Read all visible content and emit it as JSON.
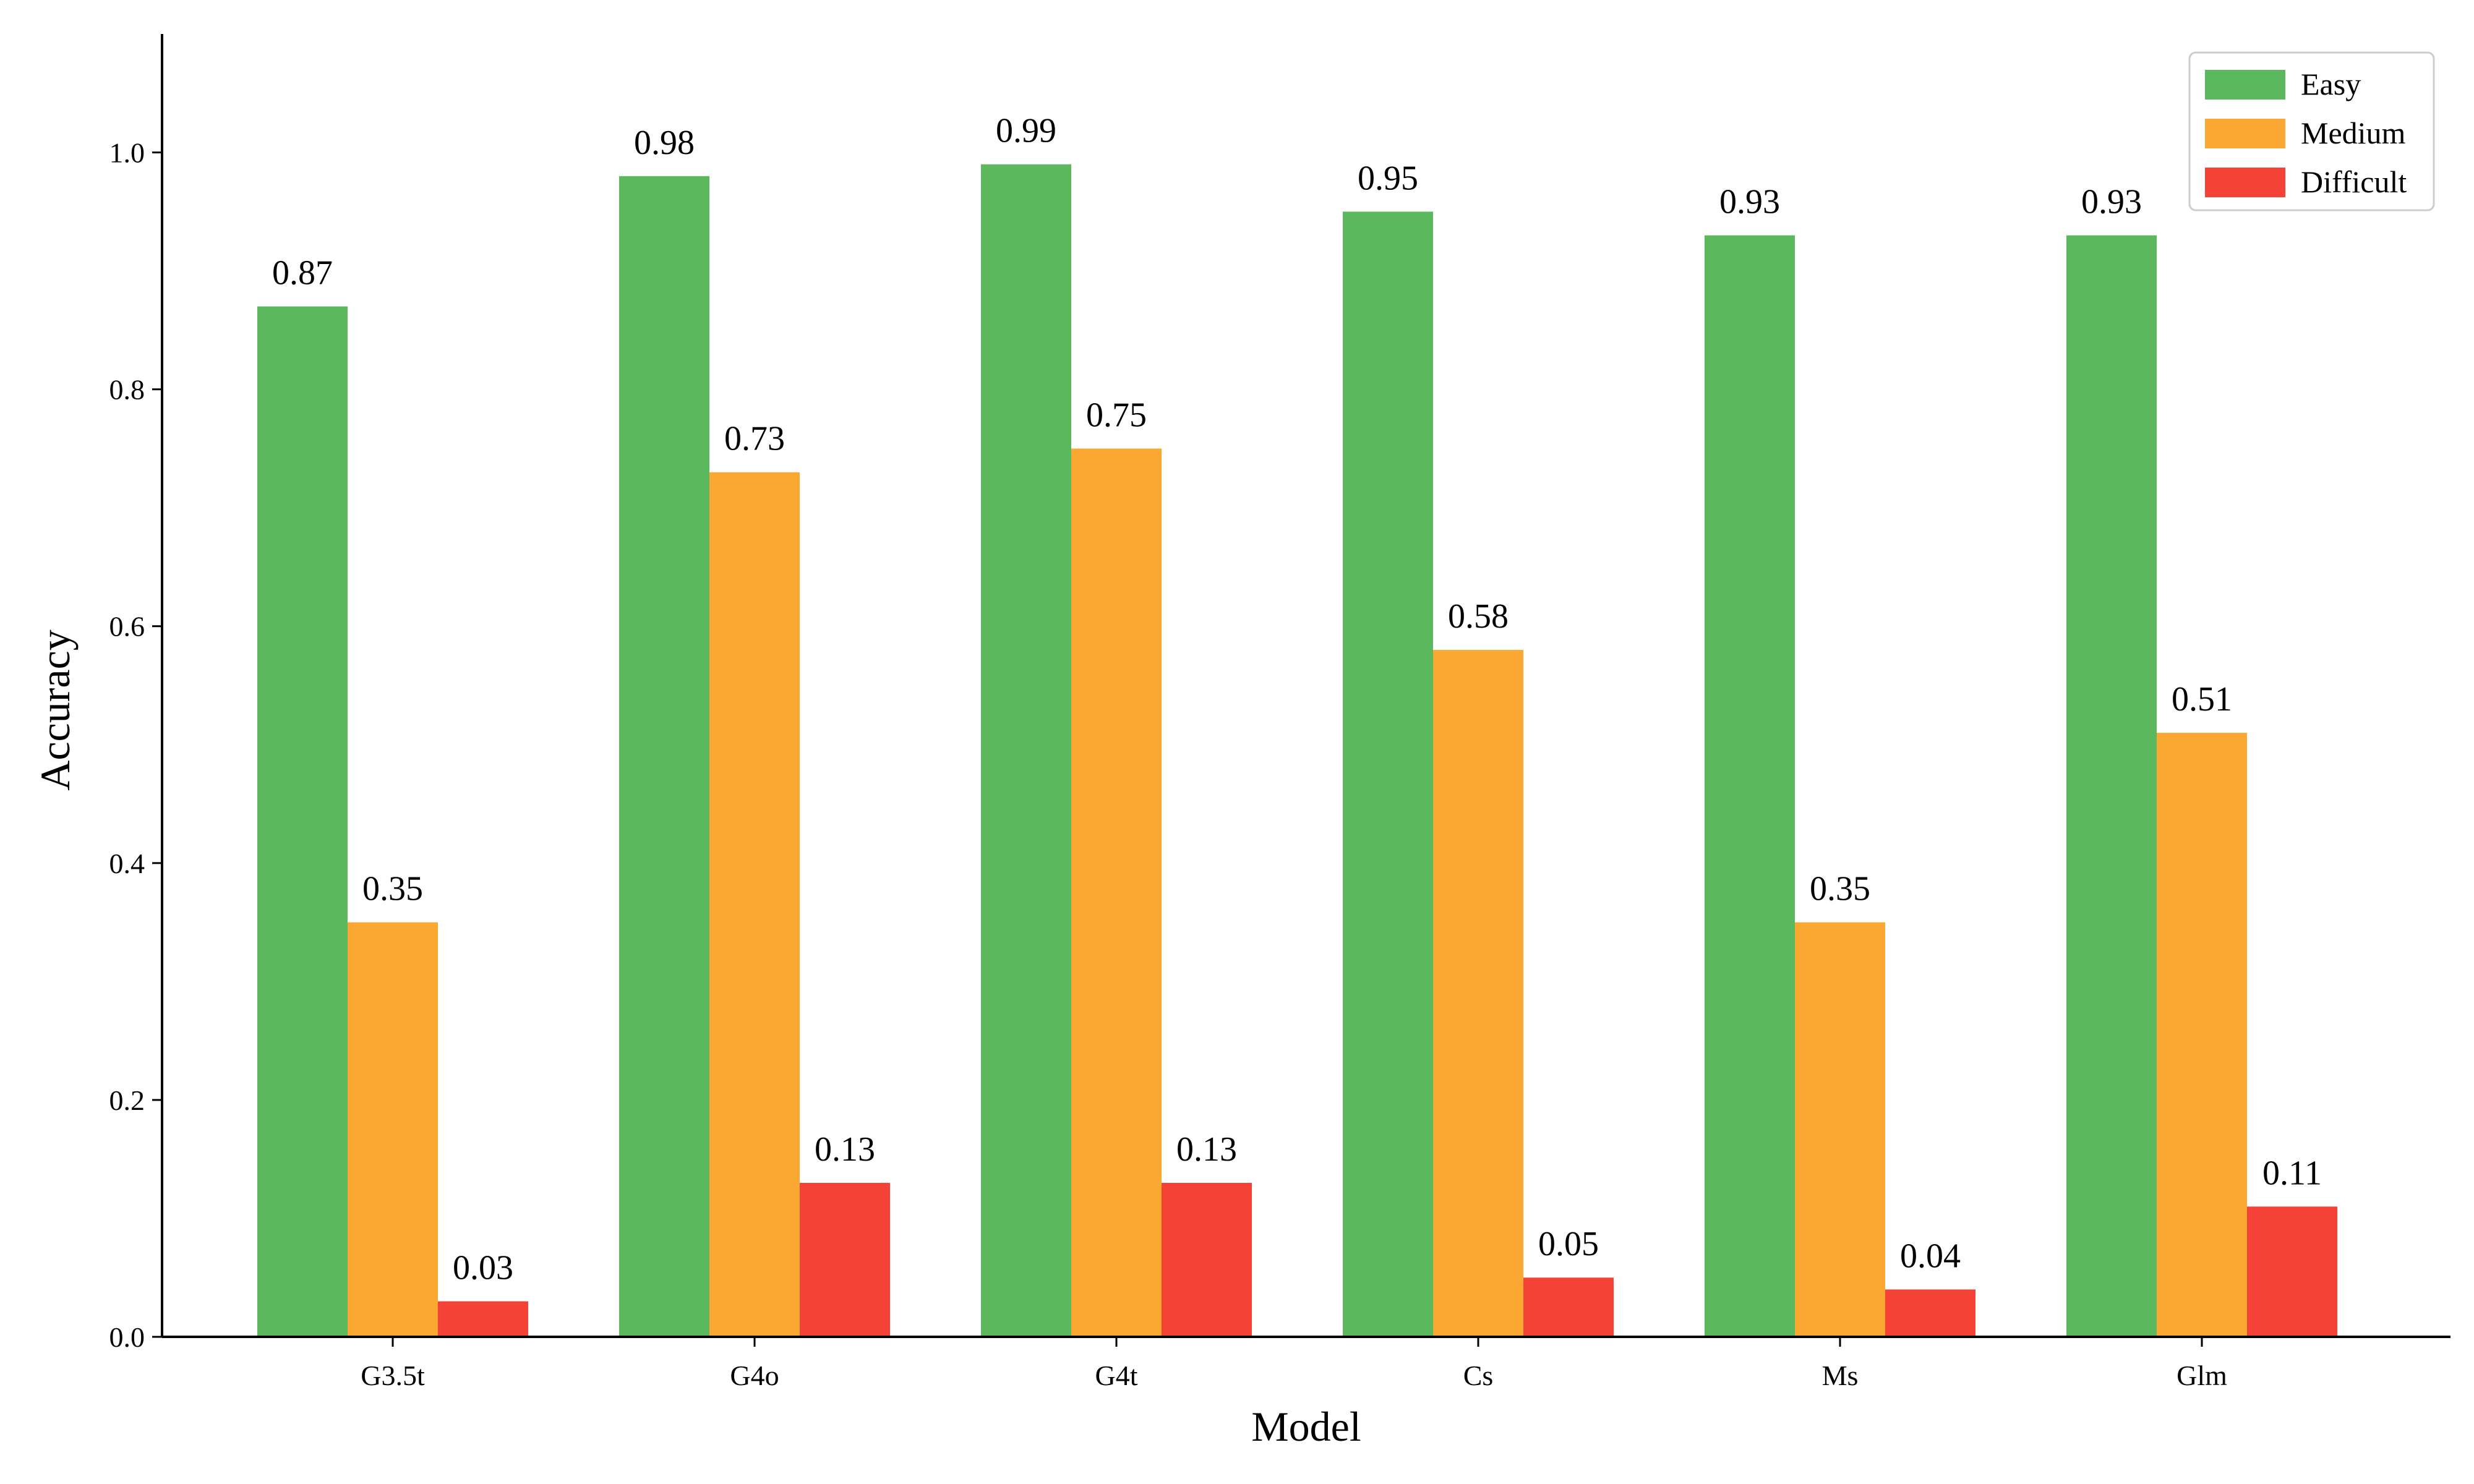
{
  "chart_data": {
    "type": "bar",
    "title": "",
    "xlabel": "Model",
    "ylabel": "Accuracy",
    "ylim": [
      0,
      1.1
    ],
    "yticks": [
      "0.0",
      "0.2",
      "0.4",
      "0.6",
      "0.8",
      "1.0"
    ],
    "ytick_values": [
      0,
      0.2,
      0.4,
      0.6,
      0.8,
      1.0
    ],
    "categories": [
      "G3.5t",
      "G4o",
      "G4t",
      "Cs",
      "Ms",
      "Glm"
    ],
    "series": [
      {
        "name": "Easy",
        "color": "#5cb85c",
        "values": [
          0.87,
          0.98,
          0.99,
          0.95,
          0.93,
          0.93
        ]
      },
      {
        "name": "Medium",
        "color": "#fba833",
        "values": [
          0.35,
          0.73,
          0.75,
          0.58,
          0.35,
          0.51
        ]
      },
      {
        "name": "Difficult",
        "color": "#f44336",
        "values": [
          0.03,
          0.13,
          0.13,
          0.05,
          0.04,
          0.11
        ]
      }
    ],
    "data_labels": true,
    "grid": false,
    "legend_position": "top-right"
  }
}
